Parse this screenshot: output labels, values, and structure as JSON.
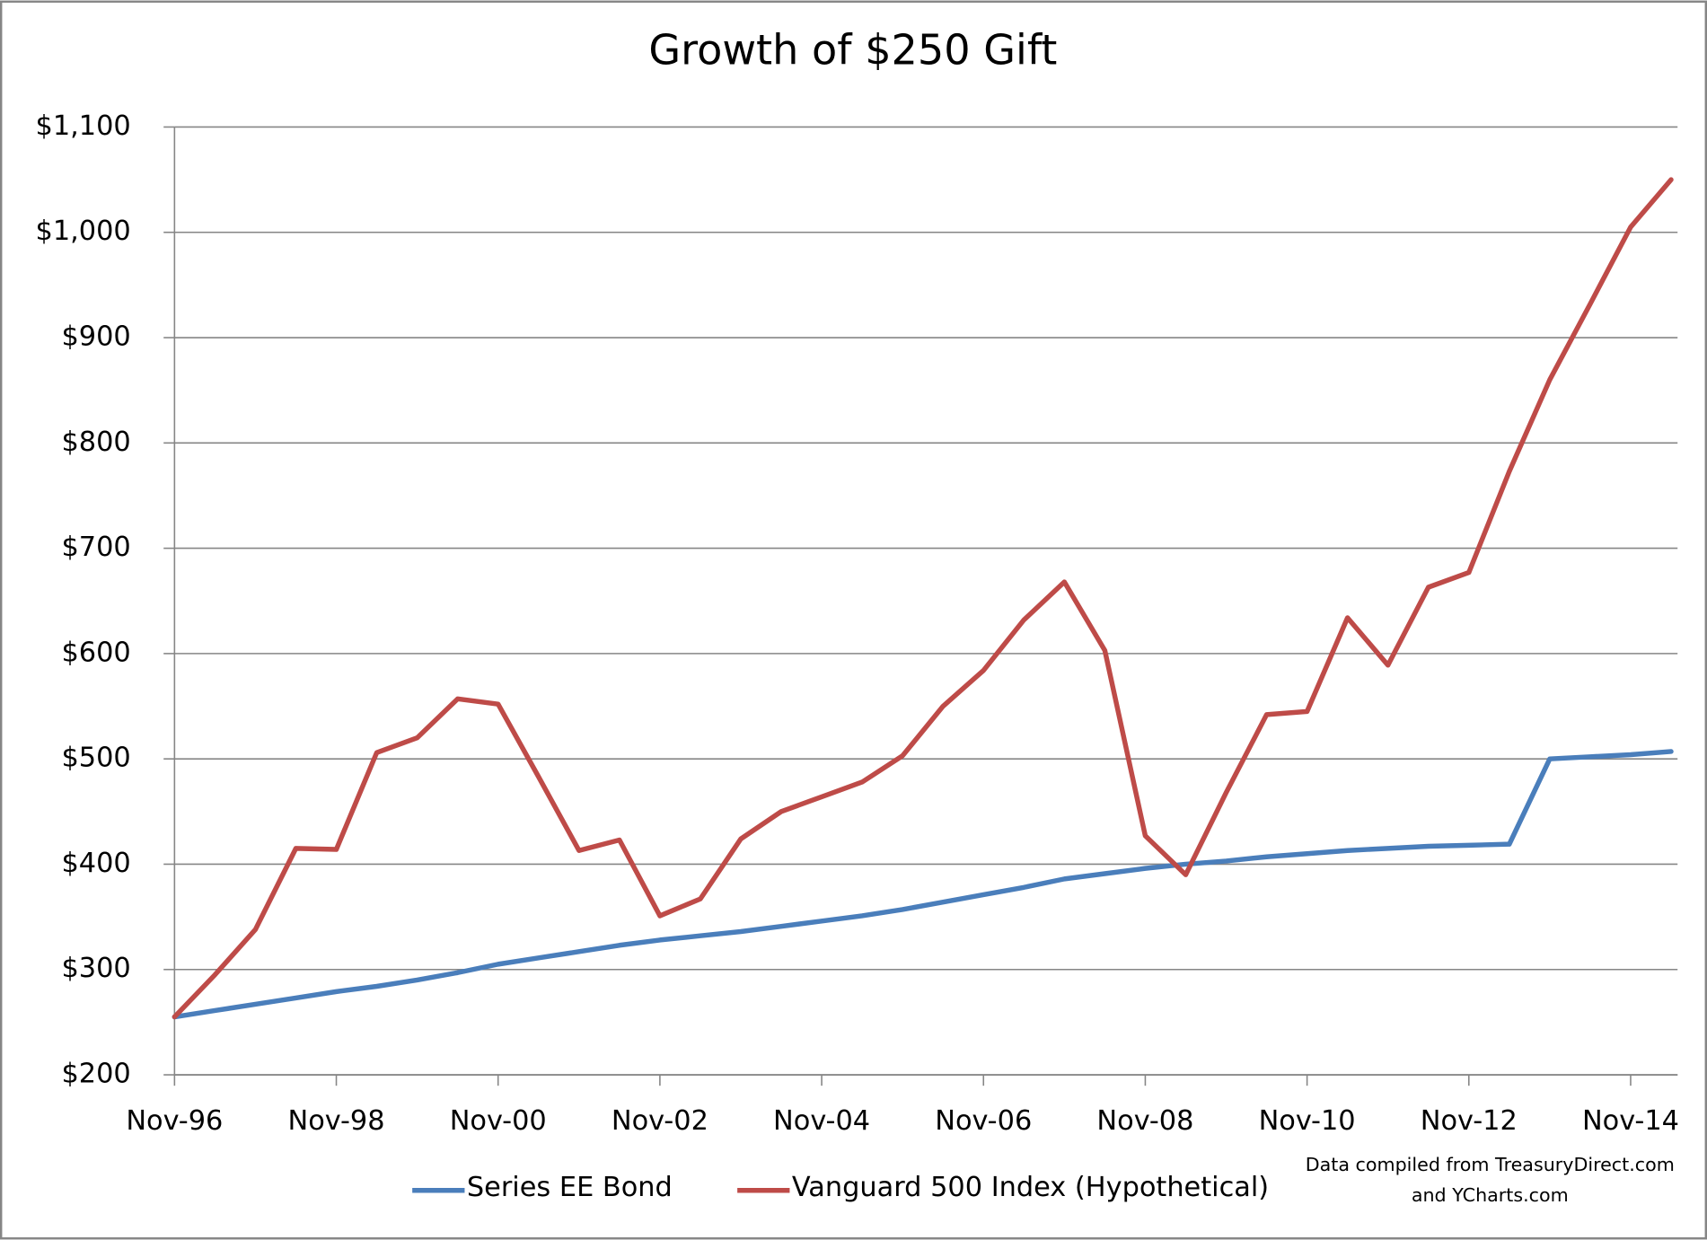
{
  "chart_data": {
    "type": "line",
    "title": "Growth of $250 Gift",
    "categories": [
      "Nov-96",
      null,
      null,
      null,
      "Nov-98",
      null,
      null,
      null,
      "Nov-00",
      null,
      null,
      null,
      "Nov-02",
      null,
      null,
      null,
      "Nov-04",
      null,
      null,
      null,
      "Nov-06",
      null,
      null,
      null,
      "Nov-08",
      null,
      null,
      null,
      "Nov-10",
      null,
      null,
      null,
      "Nov-12",
      null,
      null,
      null,
      "Nov-14",
      null
    ],
    "series": [
      {
        "name": "Series EE Bond",
        "color": "#4a7ebb",
        "values": [
          255,
          261,
          267,
          273,
          279,
          284,
          290,
          297,
          305,
          311,
          317,
          323,
          328,
          332,
          336,
          341,
          346,
          351,
          357,
          364,
          371,
          378,
          386,
          391,
          396,
          400,
          403,
          407,
          410,
          413,
          415,
          417,
          418,
          419,
          500,
          502,
          504,
          507
        ]
      },
      {
        "name": "Vanguard 500 Index (Hypothetical)",
        "color": "#be4b48",
        "values": [
          255,
          295,
          338,
          415,
          414,
          506,
          520,
          557,
          552,
          483,
          413,
          423,
          351,
          367,
          424,
          450,
          464,
          478,
          503,
          550,
          584,
          632,
          668,
          603,
          427,
          390,
          468,
          542,
          545,
          634,
          589,
          663,
          677,
          773,
          860,
          932,
          1005,
          1050
        ]
      }
    ],
    "ylim": [
      200,
      1100
    ],
    "yticks": [
      {
        "value": 200,
        "label": "$200"
      },
      {
        "value": 300,
        "label": "$300"
      },
      {
        "value": 400,
        "label": "$400"
      },
      {
        "value": 500,
        "label": "$500"
      },
      {
        "value": 600,
        "label": "$600"
      },
      {
        "value": 700,
        "label": "$700"
      },
      {
        "value": 800,
        "label": "$800"
      },
      {
        "value": 900,
        "label": "$900"
      },
      {
        "value": 1000,
        "label": "$1,000"
      },
      {
        "value": 1100,
        "label": "$1,100"
      }
    ],
    "grid": true,
    "legend": "bottom",
    "source_note": [
      "Data compiled from TreasuryDirect.com",
      "and YCharts.com"
    ]
  }
}
